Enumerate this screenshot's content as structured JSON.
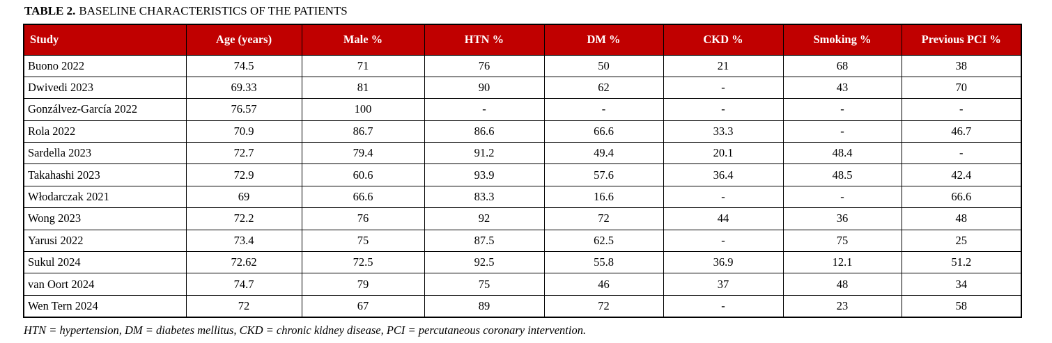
{
  "title": {
    "label": "TABLE 2.",
    "text": "BASELINE CHARACTERISTICS OF THE PATIENTS"
  },
  "colors": {
    "header_bg": "#C00000",
    "header_text": "#FFFFFF",
    "border": "#000000"
  },
  "table": {
    "columns": [
      "Study",
      "Age (years)",
      "Male %",
      "HTN %",
      "DM %",
      "CKD %",
      "Smoking %",
      "Previous PCI %"
    ],
    "rows": [
      {
        "study": "Buono 2022",
        "values": [
          "74.5",
          "71",
          "76",
          "50",
          "21",
          "68",
          "38"
        ]
      },
      {
        "study": "Dwivedi 2023",
        "values": [
          "69.33",
          "81",
          "90",
          "62",
          "-",
          "43",
          "70"
        ]
      },
      {
        "study": "Gonzálvez-García 2022",
        "values": [
          "76.57",
          "100",
          "-",
          "-",
          "-",
          "-",
          "-"
        ]
      },
      {
        "study": "Rola 2022",
        "values": [
          "70.9",
          "86.7",
          "86.6",
          "66.6",
          "33.3",
          "-",
          "46.7"
        ]
      },
      {
        "study": "Sardella 2023",
        "values": [
          "72.7",
          "79.4",
          "91.2",
          "49.4",
          "20.1",
          "48.4",
          "-"
        ]
      },
      {
        "study": "Takahashi 2023",
        "values": [
          "72.9",
          "60.6",
          "93.9",
          "57.6",
          "36.4",
          "48.5",
          "42.4"
        ]
      },
      {
        "study": "Włodarczak 2021",
        "values": [
          "69",
          "66.6",
          "83.3",
          "16.6",
          "-",
          "-",
          "66.6"
        ]
      },
      {
        "study": "Wong 2023",
        "values": [
          "72.2",
          "76",
          "92",
          "72",
          "44",
          "36",
          "48"
        ]
      },
      {
        "study": "Yarusi 2022",
        "values": [
          "73.4",
          "75",
          "87.5",
          "62.5",
          "-",
          "75",
          "25"
        ]
      },
      {
        "study": "Sukul 2024",
        "values": [
          "72.62",
          "72.5",
          "92.5",
          "55.8",
          "36.9",
          "12.1",
          "51.2"
        ]
      },
      {
        "study": "van Oort 2024",
        "values": [
          "74.7",
          "79",
          "75",
          "46",
          "37",
          "48",
          "34"
        ]
      },
      {
        "study": "Wen Tern 2024",
        "values": [
          "72",
          "67",
          "89",
          "72",
          "-",
          "23",
          "58"
        ]
      }
    ]
  },
  "footnote": "HTN = hypertension, DM = diabetes mellitus, CKD = chronic kidney disease, PCI = percutaneous coronary intervention."
}
